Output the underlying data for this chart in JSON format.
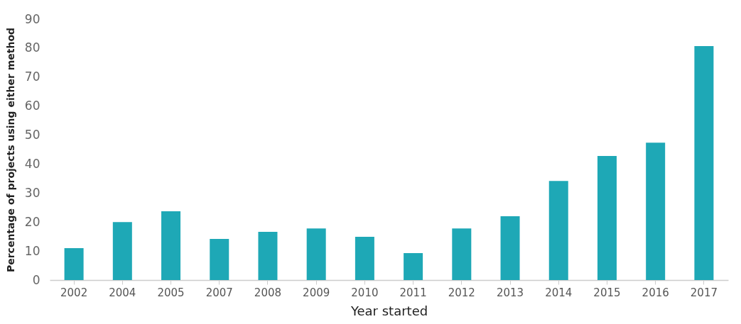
{
  "chart_data": {
    "type": "bar",
    "xlabel": "Year started",
    "ylabel": "Percentage of projects using either method",
    "categories": [
      "2002",
      "2004",
      "2005",
      "2007",
      "2008",
      "2009",
      "2010",
      "2011",
      "2012",
      "2013",
      "2014",
      "2015",
      "2016",
      "2017"
    ],
    "values": [
      11,
      20,
      23.7,
      14.2,
      16.6,
      17.8,
      14.9,
      9.3,
      17.8,
      22,
      34.2,
      42.8,
      47.4,
      80.7
    ],
    "color": "#1ea8b6",
    "ylim": [
      0,
      90
    ],
    "yticks": [
      0,
      10,
      20,
      30,
      40,
      50,
      60,
      70,
      80,
      90
    ],
    "grid": false
  }
}
